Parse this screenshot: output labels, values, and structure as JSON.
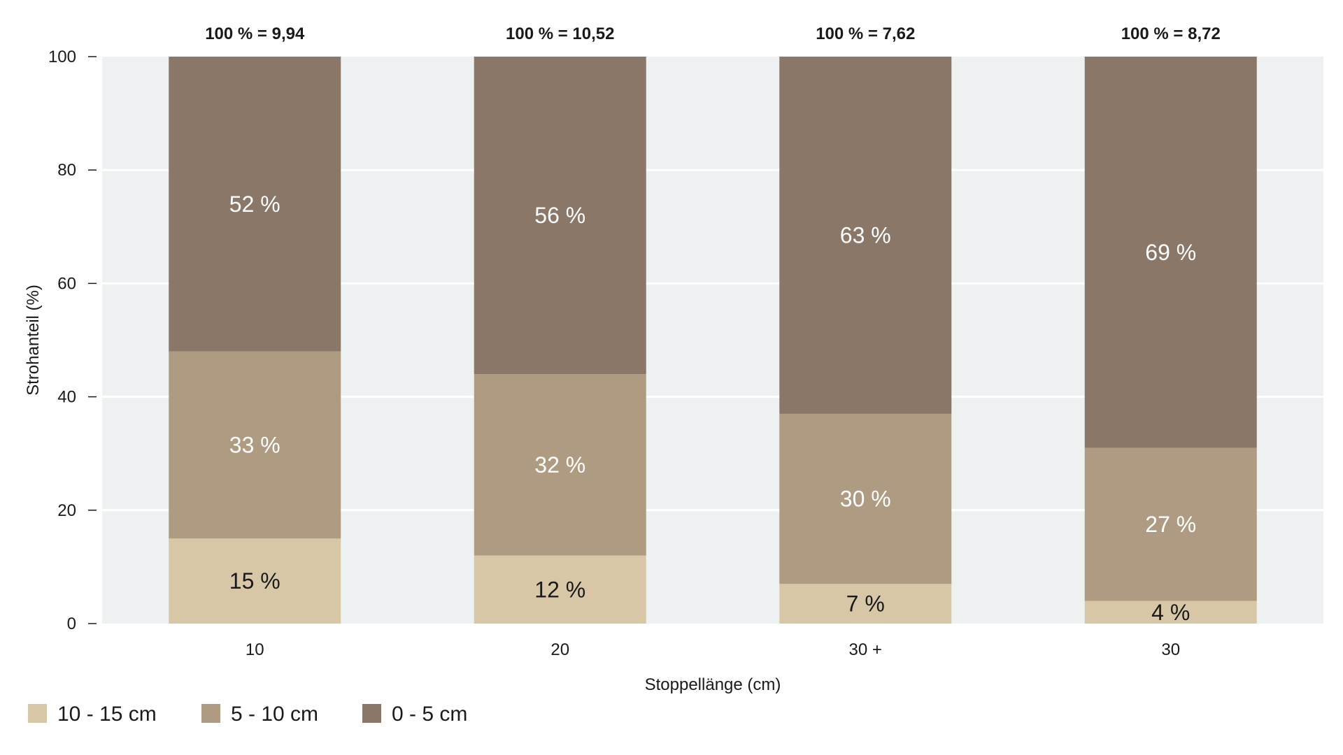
{
  "chart_data": {
    "type": "bar",
    "stacked": true,
    "categories": [
      "10",
      "20",
      "30 +",
      "30"
    ],
    "totals_labels": [
      "100 % = 9,94",
      "100 % = 10,52",
      "100 % = 7,62",
      "100 % = 8,72"
    ],
    "series": [
      {
        "name": "10 - 15 cm",
        "values": [
          15,
          12,
          7,
          4
        ],
        "labels": [
          "15 %",
          "12 %",
          "7 %",
          "4 %"
        ],
        "color": "#d8c7a6",
        "label_color": "#1a1a1a"
      },
      {
        "name": "5 - 10 cm",
        "values": [
          33,
          32,
          30,
          27
        ],
        "labels": [
          "33 %",
          "32 %",
          "30 %",
          "27 %"
        ],
        "color": "#ae9b81",
        "label_color": "#ffffff"
      },
      {
        "name": "0 - 5 cm",
        "values": [
          52,
          56,
          63,
          69
        ],
        "labels": [
          "52 %",
          "56 %",
          "63 %",
          "69 %"
        ],
        "color": "#8a7767",
        "label_color": "#ffffff"
      }
    ],
    "xlabel": "Stoppellänge (cm)",
    "ylabel": "Strohanteil (%)",
    "ylim": [
      0,
      100
    ],
    "yticks": [
      0,
      20,
      40,
      60,
      80,
      100
    ],
    "grid": true,
    "legend_position": "bottom-left",
    "colors": {
      "plot_background": "#eef1f1",
      "gridline": "#ffffff",
      "text": "#1a1a1a"
    }
  }
}
